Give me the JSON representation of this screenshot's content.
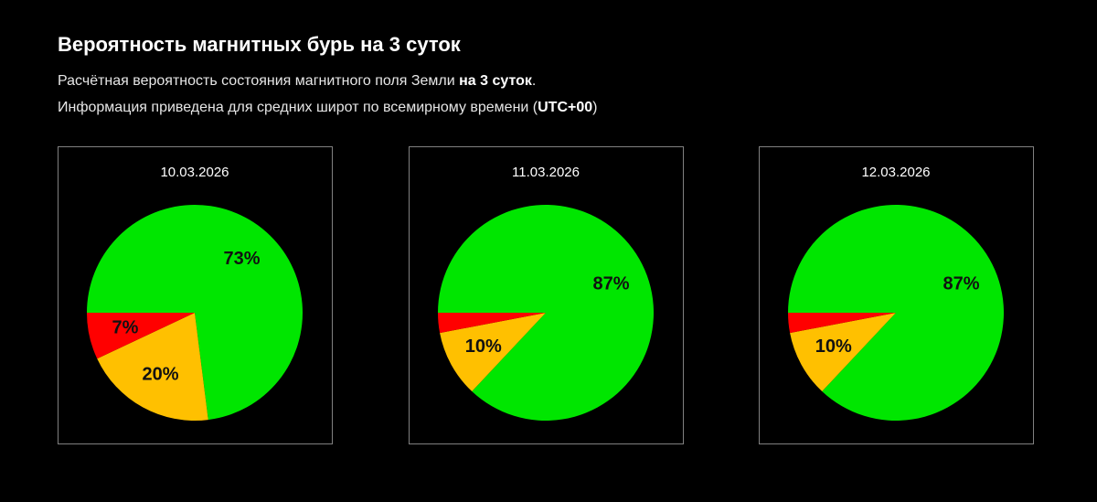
{
  "header": {
    "title": "Вероятность магнитных бурь на 3 суток",
    "line1": [
      "Расчётная вероятность состояния магнитного поля Земли ",
      "на 3 суток",
      "."
    ],
    "line2": [
      "Информация приведена для средних широт по всемирному времени (",
      "UTC+00",
      ")"
    ]
  },
  "chart_data": [
    {
      "type": "pie",
      "title": "10.03.2026",
      "values": [
        73,
        20,
        7
      ],
      "value_labels": [
        "73%",
        "20%",
        "7%"
      ],
      "colors": [
        "#00e600",
        "#ffc000",
        "#ff0000"
      ]
    },
    {
      "type": "pie",
      "title": "11.03.2026",
      "values": [
        87,
        10,
        3
      ],
      "value_labels": [
        "87%",
        "10%",
        null
      ],
      "colors": [
        "#00e600",
        "#ffc000",
        "#ff0000"
      ]
    },
    {
      "type": "pie",
      "title": "12.03.2026",
      "values": [
        87,
        10,
        3
      ],
      "value_labels": [
        "87%",
        "10%",
        null
      ],
      "colors": [
        "#00e600",
        "#ffc000",
        "#ff0000"
      ]
    }
  ]
}
